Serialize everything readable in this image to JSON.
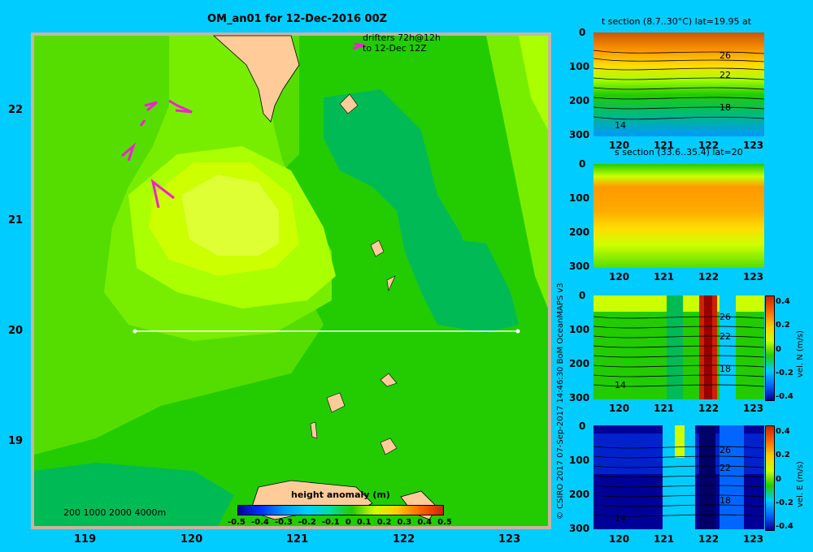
{
  "main_map": {
    "title": "OM_an01 for 12-Dec-2016 00Z",
    "drifter_note_line1": "drifters 72h@12h",
    "drifter_note_line2": "to 12-Dec 12Z",
    "x_ticks": [
      "119",
      "120",
      "121",
      "122",
      "123"
    ],
    "y_ticks": [
      "22",
      "21",
      "20",
      "19"
    ],
    "depth_scale": "200  1000  2000  4000m",
    "colorbar_title": "height anomaly (m)",
    "colorbar_ticks": [
      "-0.5",
      "-0.4",
      "-0.3",
      "-0.2",
      "-0.1",
      "0",
      "0.1",
      "0.2",
      "0.3",
      "0.4",
      "0.5"
    ],
    "colors": {
      "water_high": "#ccff00",
      "water_mid": "#77ee00",
      "water_base": "#22cc00",
      "water_low": "#00bb55",
      "land": "#ffcc99",
      "frame": "#c8b4a0",
      "drifter": "#ee22cc"
    }
  },
  "side_panels": [
    {
      "title": "t section (8.7..30°C) lat=19.95 at",
      "y_ticks": [
        "0",
        "100",
        "200",
        "300"
      ],
      "x_ticks": [
        "120",
        "121",
        "122",
        "123"
      ],
      "contour_labels": [
        "26",
        "22",
        "18",
        "14"
      ]
    },
    {
      "title": "s section (33.6..35.4) lat=20",
      "y_ticks": [
        "0",
        "100",
        "200",
        "300"
      ],
      "x_ticks": [
        "120",
        "121",
        "122",
        "123"
      ]
    },
    {
      "title": "",
      "y_ticks": [
        "0",
        "100",
        "200",
        "300"
      ],
      "x_ticks": [
        "120",
        "121",
        "122",
        "123"
      ],
      "contour_labels": [
        "26",
        "22",
        "18",
        "14"
      ],
      "colorbar_ticks": [
        "0.4",
        "0.2",
        "0",
        "-0.2",
        "-0.4"
      ],
      "colorbar_label": "vel. N (m/s)"
    },
    {
      "title": "",
      "y_ticks": [
        "0",
        "100",
        "200",
        "300"
      ],
      "x_ticks": [
        "120",
        "121",
        "122",
        "123"
      ],
      "contour_labels": [
        "26",
        "22",
        "18",
        "14"
      ],
      "colorbar_ticks": [
        "0.4",
        "0.2",
        "0",
        "-0.2",
        "-0.4"
      ],
      "colorbar_label": "vel. E (m/s)"
    }
  ],
  "credit": "© CSIRO 2017   07-Sep-2017 14:46:30 BoM OceanMAPS v3"
}
